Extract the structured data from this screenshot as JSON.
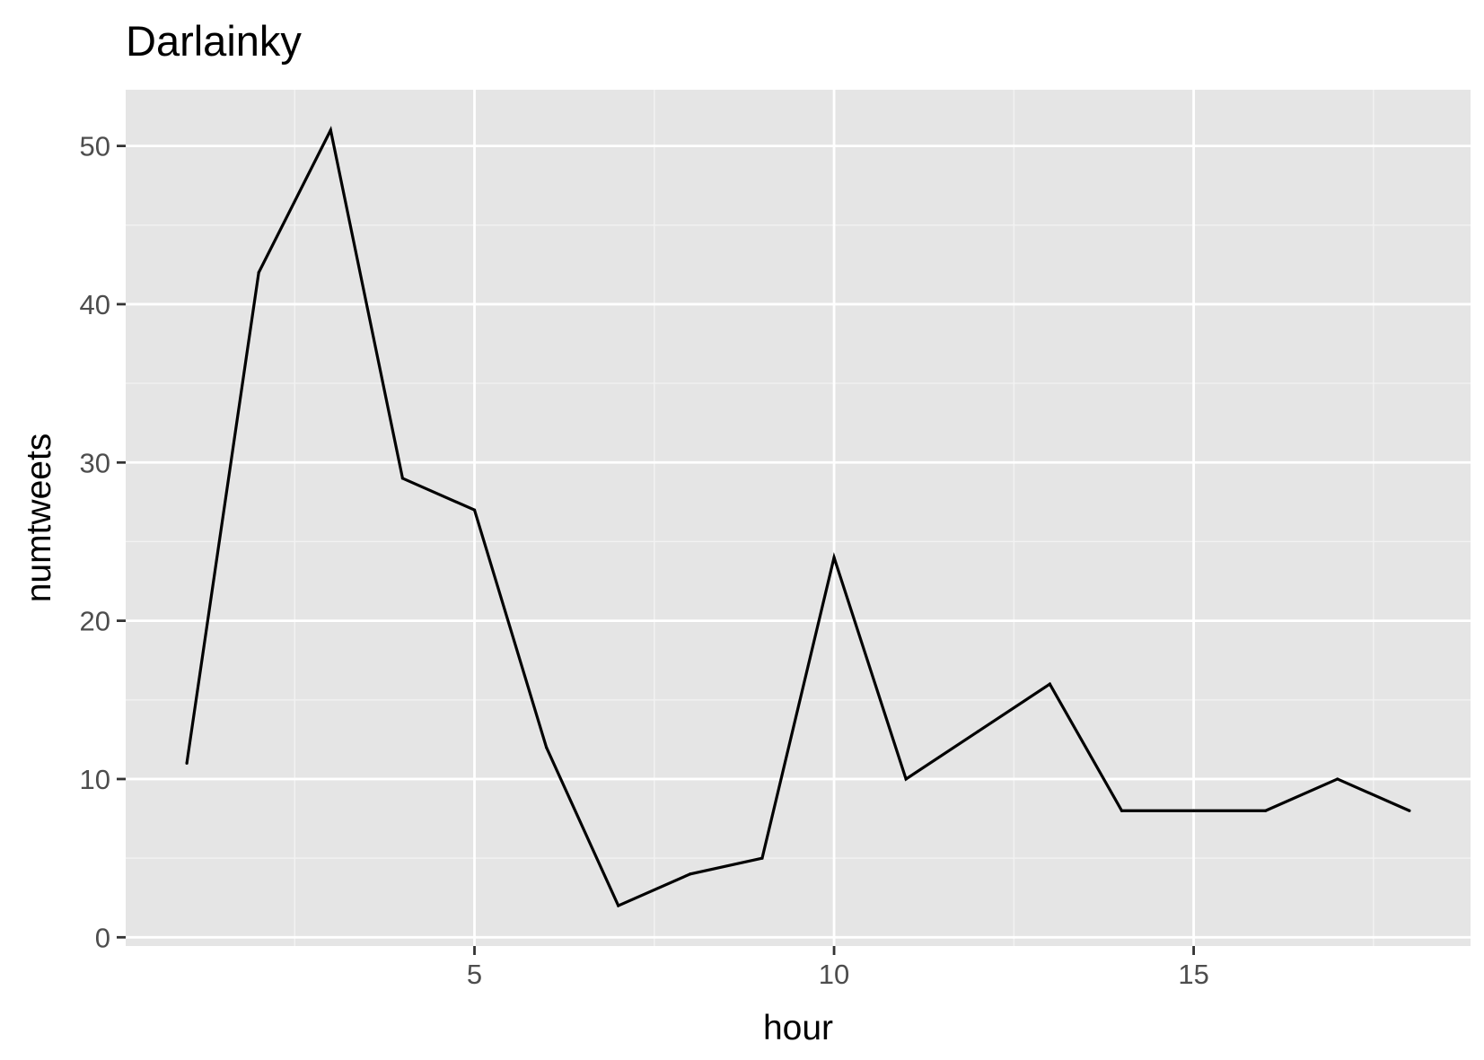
{
  "chart_data": {
    "type": "line",
    "title": "Darlainky",
    "xlabel": "hour",
    "ylabel": "numtweets",
    "x": [
      1,
      2,
      3,
      4,
      5,
      6,
      7,
      8,
      9,
      10,
      11,
      12,
      13,
      14,
      15,
      16,
      17,
      18
    ],
    "series": [
      {
        "values": [
          11,
          42,
          51,
          29,
          27,
          12,
          2,
          4,
          5,
          24,
          10,
          13,
          16,
          8,
          8,
          8,
          10,
          8
        ]
      }
    ],
    "xlim": [
      0.15,
      18.85
    ],
    "ylim": [
      -0.55,
      53.55
    ],
    "x_ticks": [
      5,
      10,
      15
    ],
    "x_tick_labels": [
      "5",
      "10",
      "15"
    ],
    "y_ticks": [
      0,
      10,
      20,
      30,
      40,
      50
    ],
    "y_tick_labels": [
      "0",
      "10",
      "20",
      "30",
      "40",
      "50"
    ],
    "x_minor_ticks": [
      2.5,
      7.5,
      12.5,
      17.5
    ],
    "y_minor_ticks": [
      5,
      15,
      25,
      35,
      45
    ],
    "grid": true,
    "legend": "none",
    "colors": {
      "panel_background": "#e5e5e5",
      "grid_major": "#ffffff",
      "grid_minor": "#f2f2f2",
      "line": "#000000",
      "tick_text": "#4d4d4d",
      "axis_ticks": "#333333"
    }
  }
}
